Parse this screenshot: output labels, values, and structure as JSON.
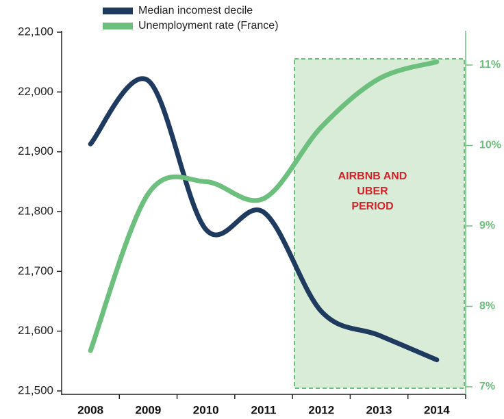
{
  "chart_data": {
    "type": "line",
    "categories": [
      "2008",
      "2009",
      "2010",
      "2011",
      "2012",
      "2013",
      "2014"
    ],
    "series": [
      {
        "name": "Median incomest decile",
        "color": "#1f3a5f",
        "values": [
          21913,
          22019,
          21770,
          21799,
          21633,
          21593,
          21552
        ]
      },
      {
        "name": "Unemployment rate (France)",
        "color": "#6dbf7e",
        "axis": "y2",
        "values": [
          7.45,
          9.4,
          9.55,
          9.34,
          10.23,
          10.83,
          11.04
        ]
      }
    ],
    "ylim": [
      21500,
      22100
    ],
    "yticks": [
      {
        "value": 21500,
        "label": "21,500"
      },
      {
        "value": 21600,
        "label": "21,600"
      },
      {
        "value": 21700,
        "label": "21,700"
      },
      {
        "value": 21800,
        "label": "21,800"
      },
      {
        "value": 21900,
        "label": "21,900"
      },
      {
        "value": 22000,
        "label": "22,000"
      },
      {
        "value": 22100,
        "label": "22,100"
      }
    ],
    "y2lim": [
      7,
      11
    ],
    "y2ticks": [
      {
        "value": 7,
        "label": "7%"
      },
      {
        "value": 8,
        "label": "8%"
      },
      {
        "value": 9,
        "label": "9%"
      },
      {
        "value": 10,
        "label": "10%"
      },
      {
        "value": 11,
        "label": "11%"
      }
    ],
    "annotation": [
      "AIRBNB AND",
      "UBER",
      "PERIOD"
    ]
  }
}
